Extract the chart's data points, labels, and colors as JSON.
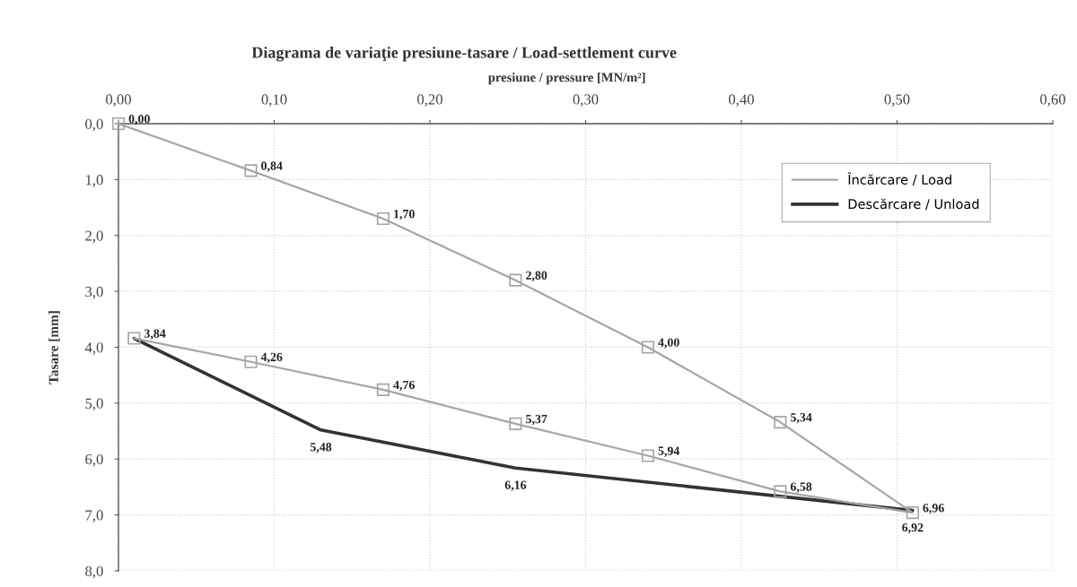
{
  "chart_data": {
    "type": "line",
    "title": "Diagrama de variaţie presiune-tasare / Load-settlement curve",
    "xlabel": "presiune / pressure [MN/m²]",
    "ylabel": "Tasare [mm]",
    "xlim": [
      0,
      0.6
    ],
    "xticks": [
      {
        "value": 0,
        "label": "0,00"
      },
      {
        "value": 0.1,
        "label": "0,10"
      },
      {
        "value": 0.2,
        "label": "0,20"
      },
      {
        "value": 0.3,
        "label": "0,30"
      },
      {
        "value": 0.4,
        "label": "0,40"
      },
      {
        "value": 0.5,
        "label": "0,50"
      },
      {
        "value": 0.6,
        "label": "0,60"
      }
    ],
    "ylim": [
      8,
      0
    ],
    "yticks": [
      {
        "value": 0,
        "label": "0,0"
      },
      {
        "value": 1,
        "label": "1,0"
      },
      {
        "value": 2,
        "label": "2,0"
      },
      {
        "value": 3,
        "label": "3,0"
      },
      {
        "value": 4,
        "label": "4,0"
      },
      {
        "value": 5,
        "label": "5,0"
      },
      {
        "value": 6,
        "label": "6,0"
      },
      {
        "value": 7,
        "label": "7,0"
      },
      {
        "value": 8,
        "label": "8,0"
      }
    ],
    "grid": true,
    "legend": "top right",
    "line_style": "solid",
    "series": [
      {
        "name": "Încărcare / Load",
        "color": "#a6a6a6",
        "marker": "square",
        "x": [
          0,
          0.085,
          0.17,
          0.255,
          0.34,
          0.425,
          0.51,
          0.425,
          0.34,
          0.255,
          0.17,
          0.085,
          0.01
        ],
        "values": [
          0,
          0.84,
          1.7,
          2.8,
          4.0,
          5.34,
          6.96,
          6.58,
          5.94,
          5.37,
          4.76,
          4.26,
          3.84
        ],
        "value_labels": [
          "0,00",
          "0,84",
          "1,70",
          "2,80",
          "4,00",
          "5,34",
          "6,96",
          "6,58",
          "5,94",
          "5,37",
          "4,76",
          "4,26",
          "3,84"
        ]
      },
      {
        "name": "Descărcare / Unload",
        "color": "#333333",
        "marker": "none",
        "x": [
          0.51,
          0.255,
          0.13,
          0.01
        ],
        "values": [
          6.92,
          6.16,
          5.48,
          3.84
        ],
        "value_labels": [
          "6,92",
          "6,16",
          "5,48",
          null
        ]
      }
    ]
  }
}
